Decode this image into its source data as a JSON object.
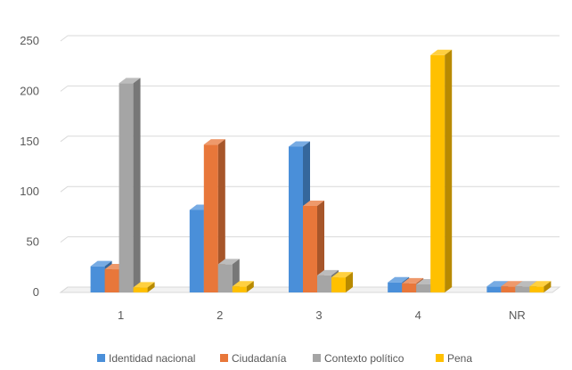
{
  "chart_data": {
    "type": "bar",
    "title": "",
    "xlabel": "",
    "ylabel": "",
    "categories": [
      "1",
      "2",
      "3",
      "4",
      "NR"
    ],
    "ylim": [
      0,
      250
    ],
    "yticks": [
      0,
      50,
      100,
      150,
      200,
      250
    ],
    "grid": true,
    "style": "3d-clustered-column",
    "legend": {
      "position": "bottom"
    },
    "series": [
      {
        "name": "Identidad nacional",
        "color": "#4A8FD9",
        "values": [
          26,
          82,
          145,
          10,
          6
        ]
      },
      {
        "name": "Ciudadanía",
        "color": "#E8773A",
        "values": [
          23,
          147,
          86,
          9,
          6
        ]
      },
      {
        "name": "Contexto político",
        "color": "#A5A5A5",
        "values": [
          208,
          28,
          17,
          8,
          6
        ]
      },
      {
        "name": "Pena",
        "color": "#FFC000",
        "values": [
          5,
          6,
          15,
          236,
          6
        ]
      }
    ]
  }
}
